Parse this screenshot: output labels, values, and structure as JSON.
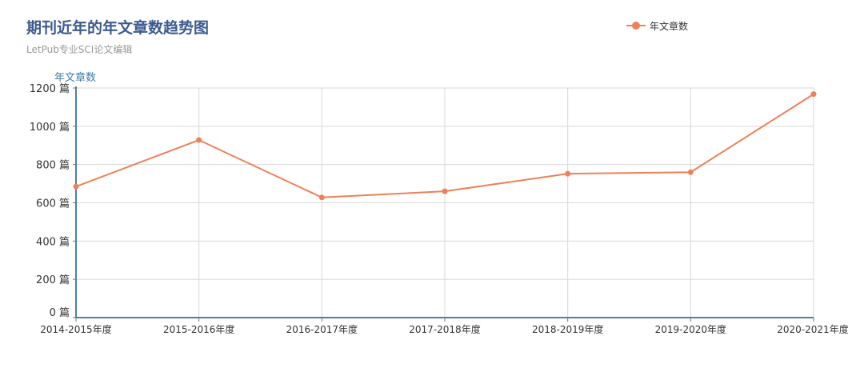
{
  "header": {
    "title": "期刊近年的年文章数趋势图",
    "subtitle": "LetPub专业SCI论文编辑"
  },
  "legend": {
    "label": "年文章数",
    "position": "top-right"
  },
  "colors": {
    "series": "#ed8157",
    "axis": "#4f7fa3",
    "grid": "#d8d8d8",
    "title": "#3c5a8f",
    "ylabel": "#3d7ea6"
  },
  "chart_data": {
    "type": "line",
    "title": "期刊近年的年文章数趋势图",
    "subtitle": "LetPub专业SCI论文编辑",
    "ylabel": "年文章数",
    "xlabel": "",
    "y_unit": "篇",
    "ylim": [
      0,
      1200
    ],
    "yticks": [
      0,
      200,
      400,
      600,
      800,
      1000,
      1200
    ],
    "ytick_labels": [
      "0 篇",
      "200 篇",
      "400 篇",
      "600 篇",
      "800 篇",
      "1000 篇",
      "1200 篇"
    ],
    "grid": true,
    "categories": [
      "2014-2015年度",
      "2015-2016年度",
      "2016-2017年度",
      "2017-2018年度",
      "2018-2019年度",
      "2019-2020年度",
      "2020-2021年度"
    ],
    "series": [
      {
        "name": "年文章数",
        "values": [
          685,
          928,
          628,
          660,
          752,
          760,
          1168
        ]
      }
    ]
  }
}
